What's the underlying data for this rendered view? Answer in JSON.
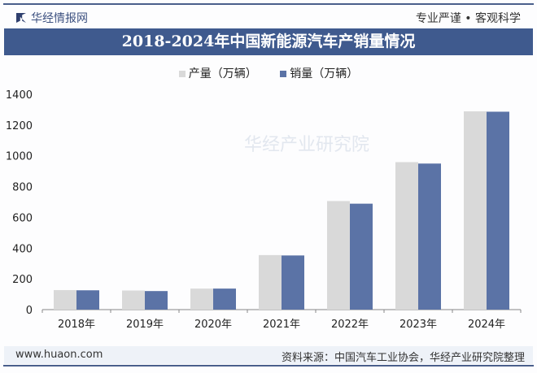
{
  "header": {
    "brand": "华经情报网",
    "slogan": "专业严谨 • 客观科学"
  },
  "footer": {
    "website": "www.huaon.com",
    "source": "资料来源：中国汽车工业协会，华经产业研究院整理"
  },
  "watermark": "华经产业研究院",
  "chart_data": {
    "type": "bar",
    "title": "2018-2024年中国新能源汽车产销量情况",
    "categories": [
      "2018年",
      "2019年",
      "2020年",
      "2021年",
      "2022年",
      "2023年",
      "2024年"
    ],
    "series": [
      {
        "name": "产量（万辆）",
        "color": "#d9d9d9",
        "values": [
          127,
          124.2,
          136.6,
          354.5,
          705.8,
          958.7,
          1288.8
        ]
      },
      {
        "name": "销量（万辆）",
        "color": "#5b73a6",
        "values": [
          125.6,
          120.6,
          136.7,
          352.1,
          688.7,
          949.5,
          1286.6
        ]
      }
    ],
    "ylim": [
      0,
      1400
    ],
    "yticks": [
      "0",
      "200",
      "400",
      "600",
      "800",
      "1000",
      "1200",
      "1400"
    ],
    "grid": false,
    "legend": "top"
  }
}
